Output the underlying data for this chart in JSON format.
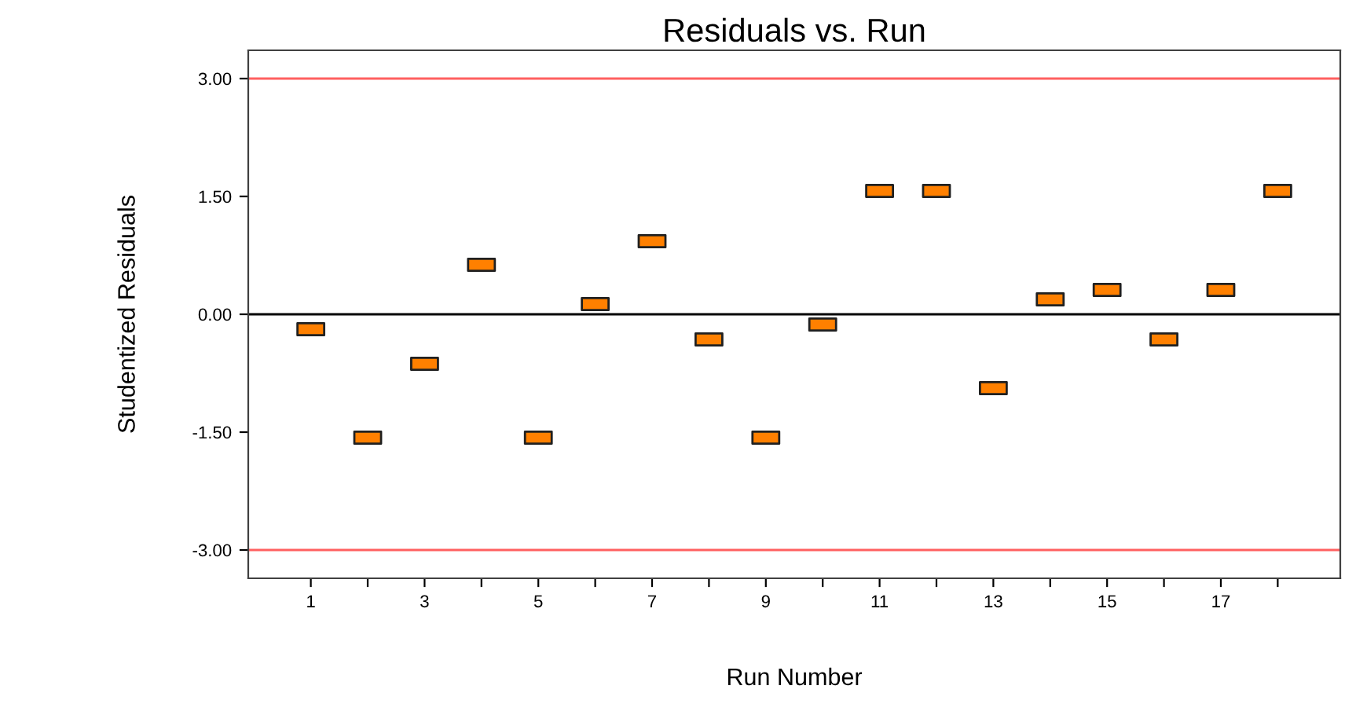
{
  "chart_data": {
    "type": "scatter",
    "title": "Residuals vs. Run",
    "xlabel": "Run Number",
    "ylabel": "Studentized Residuals",
    "x": [
      1,
      2,
      3,
      4,
      5,
      6,
      7,
      8,
      9,
      10,
      11,
      12,
      13,
      14,
      15,
      16,
      17,
      18
    ],
    "series": [
      {
        "color": "#ff8000",
        "values": [
          -0.19,
          -1.57,
          -0.63,
          0.63,
          -1.57,
          0.13,
          0.93,
          -0.32,
          -1.57,
          -0.13,
          1.57,
          1.57,
          -0.94,
          0.19,
          0.31,
          -0.32,
          0.31,
          1.57
        ]
      }
    ],
    "marker": "square",
    "xlim": [
      -0.1,
      19.1
    ],
    "xticks": [
      1,
      {
        "value": 2,
        "label": null
      },
      3,
      {
        "value": 4,
        "label": null
      },
      5,
      {
        "value": 6,
        "label": null
      },
      7,
      {
        "value": 8,
        "label": null
      },
      9,
      {
        "value": 10,
        "label": null
      },
      11,
      {
        "value": 12,
        "label": null
      },
      13,
      {
        "value": 14,
        "label": null
      },
      15,
      {
        "value": 16,
        "label": null
      },
      17,
      {
        "value": 18,
        "label": null
      }
    ],
    "ylim": [
      -3.36,
      3.36
    ],
    "yticks": [
      {
        "value": -3,
        "label": "-3.00"
      },
      {
        "value": -1.5,
        "label": "-1.50"
      },
      {
        "value": 0,
        "label": "0.00"
      },
      {
        "value": 1.5,
        "label": "1.50"
      },
      {
        "value": 3,
        "label": "3.00"
      }
    ],
    "ref_lines": [
      {
        "axis": "y",
        "value": 3,
        "color": "#ff6060"
      },
      {
        "axis": "y",
        "value": 0,
        "color": "#000000"
      },
      {
        "axis": "y",
        "value": -3,
        "color": "#ff6060"
      }
    ],
    "grid": false,
    "legend": false
  }
}
